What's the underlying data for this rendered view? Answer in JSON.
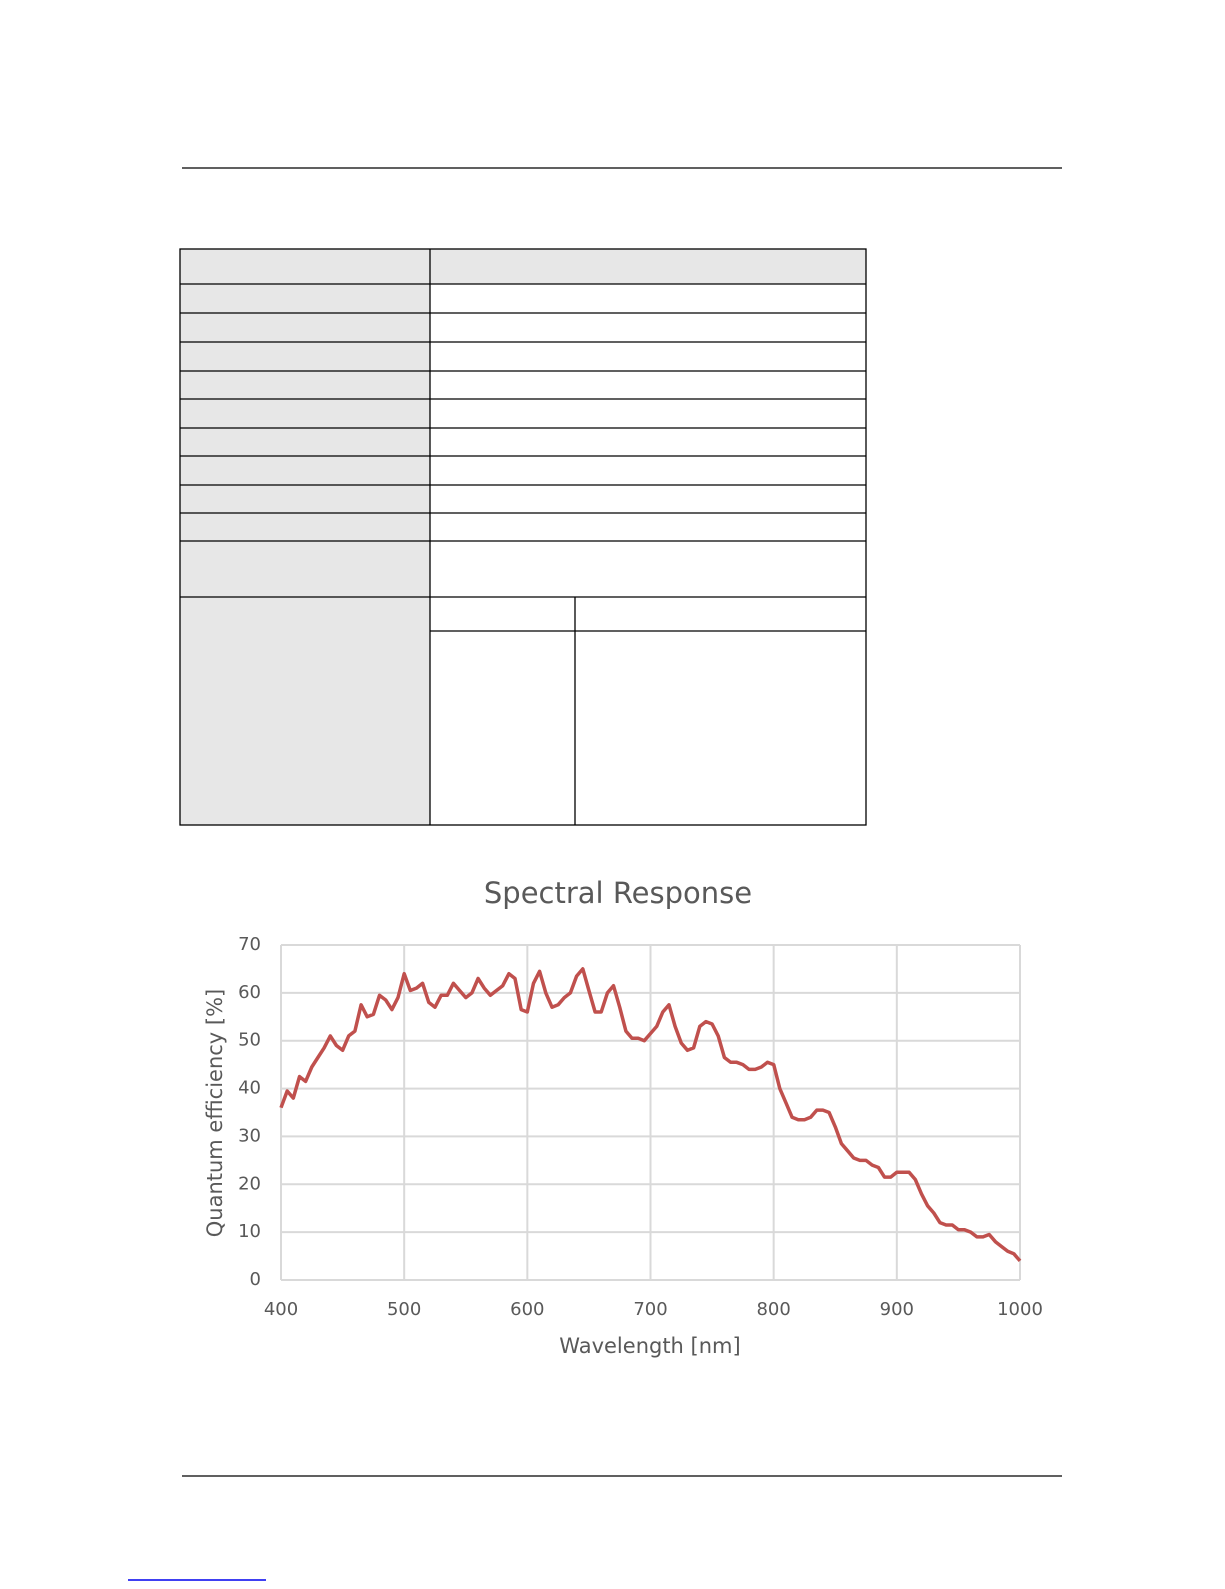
{
  "chart_data": {
    "type": "line",
    "title": "Spectral Response",
    "x_label": "Wavelength [nm]",
    "y_label": "Quantum efficiency [%]",
    "x": [
      400,
      405,
      410,
      415,
      420,
      425,
      430,
      435,
      440,
      445,
      450,
      455,
      460,
      465,
      470,
      475,
      480,
      485,
      490,
      495,
      500,
      505,
      510,
      515,
      520,
      525,
      530,
      535,
      540,
      545,
      550,
      555,
      560,
      565,
      570,
      575,
      580,
      585,
      590,
      595,
      600,
      605,
      610,
      615,
      620,
      625,
      630,
      635,
      640,
      645,
      650,
      655,
      660,
      665,
      670,
      675,
      680,
      685,
      690,
      695,
      700,
      705,
      710,
      715,
      720,
      725,
      730,
      735,
      740,
      745,
      750,
      755,
      760,
      765,
      770,
      775,
      780,
      785,
      790,
      795,
      800,
      805,
      810,
      815,
      820,
      825,
      830,
      835,
      840,
      845,
      850,
      855,
      860,
      865,
      870,
      875,
      880,
      885,
      890,
      895,
      900,
      905,
      910,
      915,
      920,
      925,
      930,
      935,
      940,
      945,
      950,
      955,
      960,
      965,
      970,
      975,
      980,
      985,
      990,
      995,
      1000
    ],
    "values": [
      36,
      39.5,
      38,
      42.5,
      41.5,
      44.5,
      46.5,
      48.5,
      51,
      49,
      48,
      51,
      52,
      57.5,
      55,
      55.5,
      59.5,
      58.5,
      56.5,
      59,
      64,
      60.5,
      61,
      62,
      58,
      57,
      59.5,
      59.5,
      62,
      60.5,
      59,
      60,
      63,
      61,
      59.5,
      60.5,
      61.5,
      64,
      63,
      56.5,
      56,
      62,
      64.5,
      60,
      57,
      57.5,
      59,
      60,
      63.5,
      65,
      60.5,
      56,
      56,
      60,
      61.5,
      57,
      52,
      50.5,
      50.5,
      50,
      51.5,
      53,
      56,
      57.5,
      53,
      49.5,
      48,
      48.5,
      53,
      54,
      53.5,
      51,
      46.5,
      45.5,
      45.5,
      45,
      44,
      44,
      44.5,
      45.5,
      45,
      40,
      37,
      34,
      33.5,
      33.5,
      34,
      35.5,
      35.5,
      35,
      32,
      28.5,
      27,
      25.5,
      25,
      25,
      24,
      23.5,
      21.5,
      21.5,
      22.5,
      22.5,
      22.5,
      21,
      18,
      15.5,
      14,
      12,
      11.5,
      11.5,
      10.5,
      10.5,
      10,
      9,
      9,
      9.5,
      8,
      7,
      6,
      5.5,
      4
    ],
    "color": "#c0504d",
    "xlim": [
      400,
      1000
    ],
    "ylim": [
      0,
      70
    ],
    "xticks": [
      400,
      500,
      600,
      700,
      800,
      900,
      1000
    ],
    "yticks": [
      0,
      10,
      20,
      30,
      40,
      50,
      60,
      70
    ],
    "grid": true
  }
}
